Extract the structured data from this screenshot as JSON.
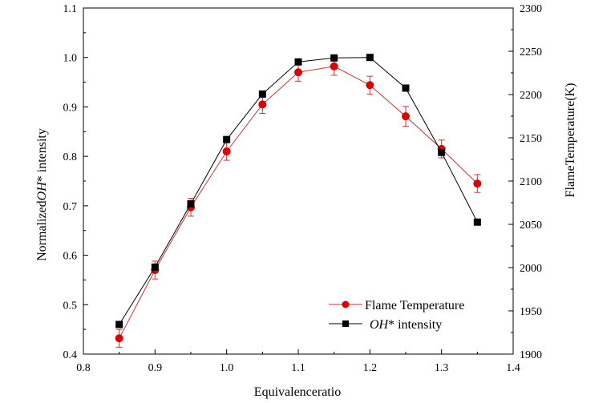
{
  "chart_data": {
    "type": "line",
    "xlabel": "Equivalenceratio",
    "ylabel_left": "Normalized OH* intensity",
    "ylabel_left_parts": {
      "prefix": "Normalized",
      "species": "OH",
      "suffix": "* intensity"
    },
    "ylabel_right": "FlameTemperature(K)",
    "xlim": [
      0.8,
      1.4
    ],
    "ylim_left": [
      0.4,
      1.1
    ],
    "ylim_right": [
      1900,
      2300
    ],
    "x_ticks": [
      "0.8",
      "0.9",
      "1.0",
      "1.1",
      "1.2",
      "1.3",
      "1.4"
    ],
    "y_left_ticks": [
      "0.4",
      "0.5",
      "0.6",
      "0.7",
      "0.8",
      "0.9",
      "1.0",
      "1.1"
    ],
    "y_right_ticks": [
      "1900",
      "1950",
      "2000",
      "2050",
      "2100",
      "2150",
      "2200",
      "2250",
      "2300"
    ],
    "x_tick_values": [
      0.8,
      0.9,
      1.0,
      1.1,
      1.2,
      1.3,
      1.4
    ],
    "y_left_tick_values": [
      0.4,
      0.5,
      0.6,
      0.7,
      0.8,
      0.9,
      1.0,
      1.1
    ],
    "y_right_tick_values": [
      1900,
      1950,
      2000,
      2050,
      2100,
      2150,
      2200,
      2250,
      2300
    ],
    "grid": false,
    "legend_position": "bottom-right",
    "series": [
      {
        "name": "Flame Temperature",
        "axis": "left",
        "color": "#dd0000",
        "line_color": "#cc3333",
        "marker": "circle",
        "x": [
          0.85,
          0.9,
          0.95,
          1.0,
          1.05,
          1.1,
          1.15,
          1.2,
          1.25,
          1.3,
          1.35
        ],
        "y": [
          0.432,
          0.57,
          0.697,
          0.81,
          0.905,
          0.97,
          0.982,
          0.944,
          0.881,
          0.815,
          0.745
        ],
        "error": [
          0.018,
          0.018,
          0.018,
          0.018,
          0.018,
          0.018,
          0.018,
          0.018,
          0.02,
          0.018,
          0.018
        ]
      },
      {
        "name_parts": {
          "species": "OH",
          "suffix": "* intensity"
        },
        "name": "OH* intensity",
        "axis": "left",
        "color": "#000000",
        "marker": "square",
        "x": [
          0.85,
          0.9,
          0.95,
          1.0,
          1.05,
          1.1,
          1.15,
          1.2,
          1.25,
          1.3,
          1.35
        ],
        "y": [
          0.46,
          0.576,
          0.704,
          0.834,
          0.926,
          0.991,
          0.999,
          1.0,
          0.938,
          0.808,
          0.667
        ]
      }
    ]
  }
}
